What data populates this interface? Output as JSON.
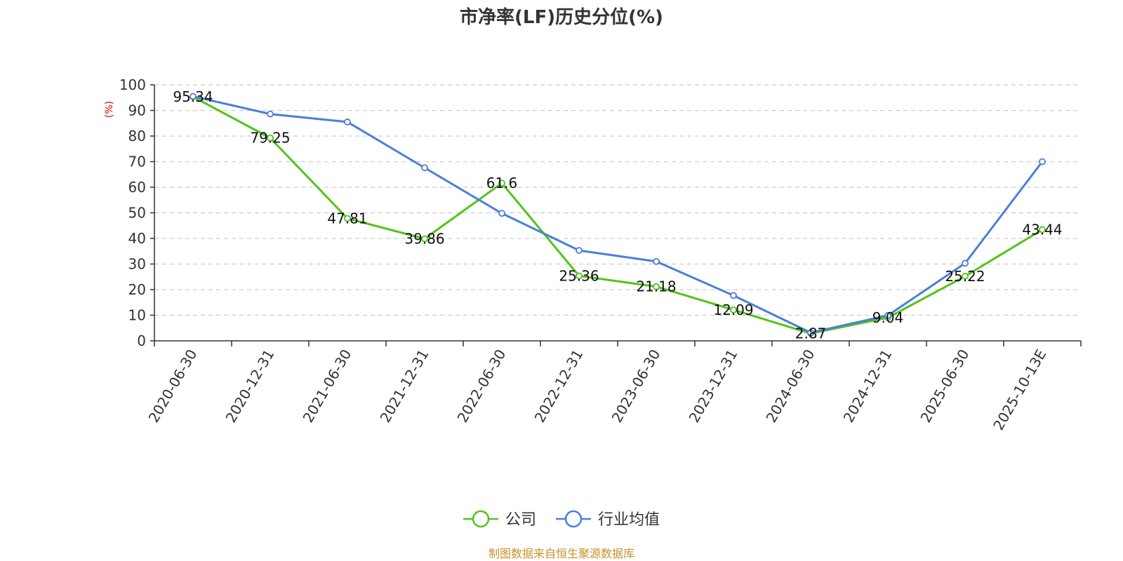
{
  "chart_data": {
    "type": "line",
    "title": "市净率(LF)历史分位(%)",
    "ylabel": "(%)",
    "xlabel": "",
    "categories": [
      "2020-06-30",
      "2020-12-31",
      "2021-06-30",
      "2021-12-31",
      "2022-06-30",
      "2022-12-31",
      "2023-06-30",
      "2023-12-31",
      "2024-06-30",
      "2024-12-31",
      "2025-06-30",
      "2025-10-13E"
    ],
    "ylim": [
      0,
      100
    ],
    "yticks": [
      0,
      10,
      20,
      30,
      40,
      50,
      60,
      70,
      80,
      90,
      100
    ],
    "grid": true,
    "legend_position": "bottom",
    "series": [
      {
        "name": "公司",
        "color": "#52c41a",
        "values": [
          95.34,
          79.25,
          47.81,
          39.86,
          61.6,
          25.36,
          21.18,
          12.09,
          2.87,
          9.04,
          25.22,
          43.44
        ],
        "show_labels": true
      },
      {
        "name": "行业均值",
        "color": "#4a7fd9",
        "values": [
          95.5,
          88.6,
          85.5,
          67.6,
          49.8,
          35.3,
          31.0,
          17.7,
          3.2,
          9.9,
          30.3,
          70.0
        ],
        "show_labels": false
      }
    ]
  },
  "colors": {
    "ylabel": "#e00000",
    "source": "#c8912a",
    "grid": "#cccccc",
    "axis": "#333333"
  },
  "source_text": "制图数据来自恒生聚源数据库"
}
